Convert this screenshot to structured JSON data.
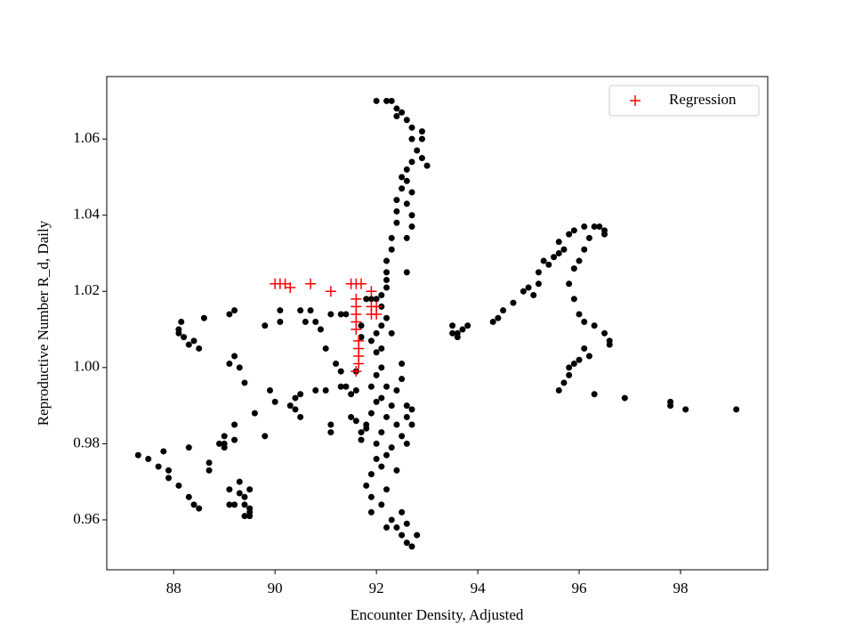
{
  "chart_data": {
    "type": "scatter",
    "xlabel": "Encounter Density, Adjusted",
    "ylabel": "Reproductive Number R_d, Daily",
    "xlim": [
      86.68,
      99.72
    ],
    "ylim": [
      0.9469,
      1.0764
    ],
    "xticks": [
      88,
      90,
      92,
      94,
      96,
      98
    ],
    "yticks": [
      0.96,
      0.98,
      {
        "value": 1,
        "label": "1.00"
      },
      1.02,
      1.04,
      1.06
    ],
    "legend": "upper right",
    "series": [
      {
        "color": "#000000",
        "marker": "o",
        "x": [
          87.3,
          87.5,
          87.7,
          87.8,
          87.9,
          87.9,
          88.1,
          88.3,
          88.3,
          88.4,
          88.5,
          88.1,
          88.15,
          88.1,
          88.2,
          88.3,
          88.4,
          88.5,
          88.6,
          88.7,
          88.7,
          88.9,
          89.0,
          89.0,
          89.0,
          89.1,
          89.1,
          89.2,
          89.2,
          89.2,
          89.1,
          89.2,
          89.3,
          89.4,
          89.1,
          89.2,
          89.3,
          89.3,
          89.4,
          89.4,
          89.5,
          89.5,
          89.5,
          89.4,
          89.5,
          89.6,
          89.8,
          89.9,
          90.0,
          89.8,
          90.1,
          90.1,
          90.3,
          90.4,
          90.4,
          90.5,
          90.5,
          90.5,
          90.6,
          90.7,
          90.8,
          90.8,
          90.9,
          91.0,
          91.0,
          91.1,
          91.1,
          91.1,
          91.2,
          91.3,
          91.3,
          91.3,
          91.4,
          91.4,
          91.5,
          91.5,
          91.6,
          91.6,
          91.7,
          91.7,
          91.8,
          91.8,
          91.9,
          91.9,
          91.9,
          91.6,
          91.7,
          91.7,
          91.8,
          91.9,
          92.0,
          92.1,
          92.1,
          92.2,
          92.2,
          92.2,
          92.2,
          92.3,
          92.3,
          92.4,
          92.4,
          92.4,
          92.5,
          92.5,
          92.6,
          92.6,
          92.7,
          92.6,
          92.7,
          92.7,
          92.6,
          92.6,
          92.7,
          92.8,
          92.9,
          93.0,
          92.9,
          92.9,
          92.7,
          92.7,
          92.6,
          92.5,
          92.4,
          92.3,
          92.2,
          92.0,
          92.4,
          92.1,
          92.1,
          92.0,
          92.2,
          92.1,
          92.3,
          92.2,
          92.4,
          92.5,
          92.3,
          92.2,
          92.1,
          92.4,
          92.0,
          92.0,
          92.2,
          92.1,
          92.3,
          92.4,
          92.5,
          92.6,
          92.7,
          92.8,
          92.6,
          92.5,
          92.2,
          92.4,
          92.5,
          92.6,
          92.6,
          92.6,
          92.5,
          92.7,
          92.7,
          92.3,
          92.2,
          92.1,
          92.0,
          91.9,
          92.0,
          92.0,
          91.9,
          91.8,
          91.9,
          92.1,
          93.5,
          93.5,
          93.6,
          93.7,
          93.8,
          93.6,
          94.3,
          94.4,
          94.5,
          94.7,
          94.9,
          95.0,
          95.1,
          95.2,
          95.3,
          95.4,
          95.6,
          95.7,
          95.6,
          95.8,
          95.9,
          96.1,
          96.3,
          96.4,
          96.5,
          96.5,
          96.2,
          96.1,
          96.0,
          95.9,
          95.8,
          95.9,
          96.0,
          96.1,
          96.3,
          96.5,
          96.6,
          96.6,
          95.2,
          95.5,
          95.7,
          95.8,
          95.8,
          95.9,
          96.0,
          96.1,
          96.2,
          95.6,
          96.3,
          96.9,
          97.8,
          97.8,
          98.1,
          99.1
        ],
        "y": [
          0.977,
          0.976,
          0.974,
          0.978,
          0.973,
          0.971,
          0.969,
          0.966,
          0.979,
          0.964,
          0.963,
          1.01,
          1.012,
          1.009,
          1.008,
          1.006,
          1.007,
          1.005,
          1.013,
          0.975,
          0.973,
          0.98,
          0.98,
          0.982,
          0.979,
          0.968,
          0.964,
          0.964,
          0.981,
          0.985,
          1.001,
          1.003,
          1.0,
          0.996,
          1.014,
          1.015,
          0.97,
          0.967,
          0.966,
          0.964,
          0.962,
          0.961,
          0.963,
          0.961,
          0.968,
          0.988,
          0.982,
          0.994,
          0.991,
          1.011,
          1.015,
          1.012,
          0.99,
          0.992,
          0.989,
          0.987,
          0.993,
          1.015,
          1.012,
          1.015,
          1.012,
          0.994,
          1.01,
          0.994,
          1.005,
          0.983,
          0.985,
          1.014,
          1.001,
          1.014,
          0.999,
          0.995,
          1.014,
          0.995,
          0.987,
          0.993,
          0.986,
          0.994,
          0.983,
          0.981,
          0.984,
          0.969,
          0.972,
          0.966,
          0.962,
          0.999,
          1.008,
          1.011,
          1.018,
          1.018,
          1.018,
          1.019,
          1.016,
          1.021,
          1.023,
          1.025,
          1.028,
          1.031,
          1.034,
          1.038,
          1.041,
          1.044,
          1.047,
          1.05,
          1.052,
          1.049,
          1.046,
          1.043,
          1.04,
          1.037,
          1.034,
          1.025,
          1.054,
          1.057,
          1.06,
          1.053,
          1.055,
          1.062,
          1.063,
          1.06,
          1.065,
          1.067,
          1.068,
          1.07,
          1.07,
          1.07,
          1.066,
          1.005,
          1.0,
          0.998,
          0.995,
          0.992,
          0.99,
          0.987,
          0.985,
          0.982,
          0.979,
          0.977,
          0.974,
          0.973,
          0.98,
          0.976,
          0.968,
          0.964,
          0.96,
          0.958,
          0.956,
          0.954,
          0.953,
          0.956,
          0.959,
          0.962,
          0.958,
          0.994,
          0.997,
          0.99,
          0.987,
          0.98,
          1.001,
          0.989,
          0.985,
          1.009,
          1.013,
          1.011,
          1.009,
          1.007,
          1.004,
          0.991,
          0.988,
          0.985,
          0.995,
          0.983,
          1.009,
          1.011,
          1.009,
          1.01,
          1.011,
          1.008,
          1.012,
          1.013,
          1.015,
          1.017,
          1.02,
          1.021,
          1.019,
          1.022,
          1.028,
          1.027,
          1.03,
          1.031,
          1.033,
          1.035,
          1.036,
          1.037,
          1.037,
          1.037,
          1.036,
          1.035,
          1.034,
          1.031,
          1.028,
          1.026,
          1.022,
          1.018,
          1.014,
          1.012,
          1.011,
          1.009,
          1.007,
          1.006,
          1.025,
          1.029,
          0.996,
          0.998,
          1.0,
          1.001,
          1.002,
          1.005,
          1.003,
          0.994,
          0.993,
          0.992,
          0.991,
          0.99,
          0.989,
          0.989
        ]
      },
      {
        "name": "Regression",
        "color": "#ff0000",
        "marker": "+",
        "x": [
          90.0,
          90.1,
          90.2,
          90.3,
          90.7,
          91.1,
          91.5,
          91.6,
          91.7,
          91.6,
          91.6,
          91.6,
          91.6,
          91.6,
          91.65,
          91.65,
          91.65,
          91.65,
          91.6,
          91.9,
          91.9,
          91.9,
          92.0,
          92.0
        ],
        "y": [
          1.022,
          1.022,
          1.022,
          1.021,
          1.022,
          1.02,
          1.022,
          1.022,
          1.022,
          1.018,
          1.016,
          1.014,
          1.012,
          1.01,
          1.007,
          1.005,
          1.003,
          1.001,
          0.999,
          1.02,
          1.016,
          1.014,
          1.014,
          1.016
        ]
      }
    ]
  }
}
